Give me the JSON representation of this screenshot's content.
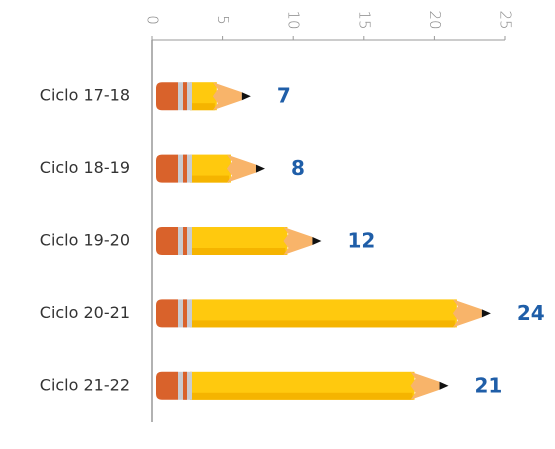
{
  "chart_data": {
    "type": "bar",
    "orientation": "horizontal",
    "categories": [
      "Ciclo 17-18",
      "Ciclo 18-19",
      "Ciclo 19-20",
      "Ciclo 20-21",
      "Ciclo 21-22"
    ],
    "values": [
      7,
      8,
      12,
      24,
      21
    ],
    "color": "#ffc90e",
    "xlim": [
      0,
      25
    ],
    "xticks": [
      0,
      5,
      10,
      15,
      20,
      25
    ]
  }
}
